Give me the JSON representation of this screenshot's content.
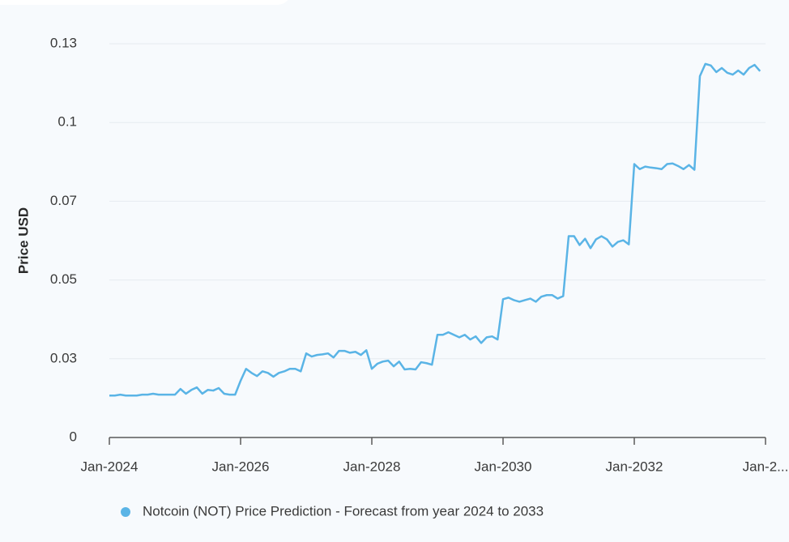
{
  "chart_data": {
    "type": "line",
    "y_label": "Price USD",
    "xlim": [
      "2024-01",
      "2034-01"
    ],
    "xticks": [
      {
        "value": "2024-01",
        "label": "Jan-2024"
      },
      {
        "value": "2026-01",
        "label": "Jan-2026"
      },
      {
        "value": "2028-01",
        "label": "Jan-2028"
      },
      {
        "value": "2030-01",
        "label": "Jan-2030"
      },
      {
        "value": "2032-01",
        "label": "Jan-2032"
      },
      {
        "value": "2034-01",
        "label": "Jan-2..."
      }
    ],
    "ylim": [
      0,
      0.125
    ],
    "yticks": [
      0,
      {
        "value": 0.025,
        "label": "0.03"
      },
      {
        "value": 0.05,
        "label": "0.05"
      },
      {
        "value": 0.075,
        "label": "0.07"
      },
      {
        "value": 0.1,
        "label": "0.1"
      },
      {
        "value": 0.125,
        "label": "0.13"
      }
    ],
    "grid": true,
    "legend": "bottom",
    "x": [
      "2024-01",
      "2024-02",
      "2024-03",
      "2024-04",
      "2024-05",
      "2024-06",
      "2024-07",
      "2024-08",
      "2024-09",
      "2024-10",
      "2024-11",
      "2024-12",
      "2025-01",
      "2025-02",
      "2025-03",
      "2025-04",
      "2025-05",
      "2025-06",
      "2025-07",
      "2025-08",
      "2025-09",
      "2025-10",
      "2025-11",
      "2025-12",
      "2026-01",
      "2026-02",
      "2026-03",
      "2026-04",
      "2026-05",
      "2026-06",
      "2026-07",
      "2026-08",
      "2026-09",
      "2026-10",
      "2026-11",
      "2026-12",
      "2027-01",
      "2027-02",
      "2027-03",
      "2027-04",
      "2027-05",
      "2027-06",
      "2027-07",
      "2027-08",
      "2027-09",
      "2027-10",
      "2027-11",
      "2027-12",
      "2028-01",
      "2028-02",
      "2028-03",
      "2028-04",
      "2028-05",
      "2028-06",
      "2028-07",
      "2028-08",
      "2028-09",
      "2028-10",
      "2028-11",
      "2028-12",
      "2029-01",
      "2029-02",
      "2029-03",
      "2029-04",
      "2029-05",
      "2029-06",
      "2029-07",
      "2029-08",
      "2029-09",
      "2029-10",
      "2029-11",
      "2029-12",
      "2030-01",
      "2030-02",
      "2030-03",
      "2030-04",
      "2030-05",
      "2030-06",
      "2030-07",
      "2030-08",
      "2030-09",
      "2030-10",
      "2030-11",
      "2030-12",
      "2031-01",
      "2031-02",
      "2031-03",
      "2031-04",
      "2031-05",
      "2031-06",
      "2031-07",
      "2031-08",
      "2031-09",
      "2031-10",
      "2031-11",
      "2031-12",
      "2032-01",
      "2032-02",
      "2032-03",
      "2032-04",
      "2032-05",
      "2032-06",
      "2032-07",
      "2032-08",
      "2032-09",
      "2032-10",
      "2032-11",
      "2032-12",
      "2033-01",
      "2033-02",
      "2033-03",
      "2033-04",
      "2033-05",
      "2033-06",
      "2033-07",
      "2033-08",
      "2033-09",
      "2033-10",
      "2033-11",
      "2033-12"
    ],
    "series": [
      {
        "name": "Notcoin (NOT) Price Prediction - Forecast from year 2024 to 2033",
        "color": "#5ab4e6",
        "values": [
          0.0133,
          0.0133,
          0.0136,
          0.0133,
          0.0133,
          0.0133,
          0.0136,
          0.0136,
          0.0139,
          0.0136,
          0.0136,
          0.0136,
          0.0136,
          0.0154,
          0.0139,
          0.0151,
          0.0159,
          0.0139,
          0.0151,
          0.0149,
          0.0157,
          0.0139,
          0.0136,
          0.0136,
          0.018,
          0.0218,
          0.0205,
          0.0195,
          0.021,
          0.0205,
          0.0193,
          0.0205,
          0.021,
          0.0218,
          0.0218,
          0.021,
          0.0267,
          0.0257,
          0.0262,
          0.0264,
          0.0267,
          0.0254,
          0.0275,
          0.0275,
          0.0269,
          0.0272,
          0.0262,
          0.0277,
          0.0218,
          0.0234,
          0.0241,
          0.0244,
          0.0226,
          0.0241,
          0.0216,
          0.0218,
          0.0216,
          0.0239,
          0.0236,
          0.0231,
          0.0326,
          0.0326,
          0.0334,
          0.0326,
          0.0318,
          0.0326,
          0.0311,
          0.0321,
          0.03,
          0.0318,
          0.0321,
          0.0311,
          0.0439,
          0.0444,
          0.0436,
          0.0431,
          0.0436,
          0.0441,
          0.0431,
          0.0447,
          0.0452,
          0.0452,
          0.0441,
          0.0449,
          0.0639,
          0.0639,
          0.0611,
          0.0631,
          0.0601,
          0.0629,
          0.0639,
          0.0629,
          0.0606,
          0.0621,
          0.0626,
          0.0613,
          0.0868,
          0.0852,
          0.086,
          0.0857,
          0.0855,
          0.0852,
          0.0868,
          0.087,
          0.0862,
          0.0852,
          0.0865,
          0.085,
          0.1147,
          0.1186,
          0.1181,
          0.116,
          0.1173,
          0.1158,
          0.1152,
          0.1165,
          0.1152,
          0.1173,
          0.1183,
          0.1163
        ]
      }
    ]
  }
}
